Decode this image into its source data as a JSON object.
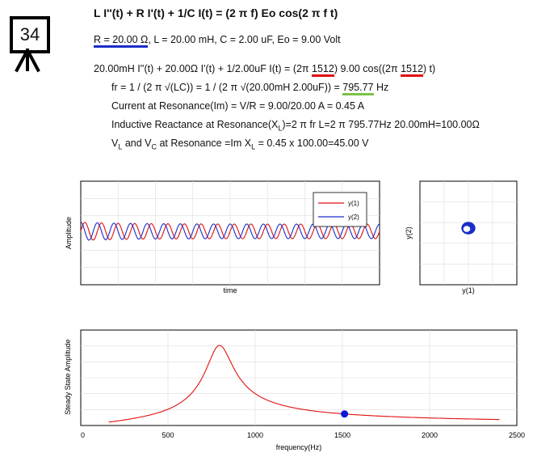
{
  "problem_number": "34",
  "title": "L I''(t) + R I'(t) + 1/C I(t) = (2 π f) Eo cos(2 π f t)",
  "params": {
    "r_part": "R = 20.00 Ω",
    "rest": ", L = 20.00 mH, C = 2.00 uF, Eo = 9.00 Volt"
  },
  "ode": {
    "part1": "20.00mH I''(t) + 20.00Ω I'(t) + 1/2.00uF I(t) = (2π ",
    "freq1": "1512",
    "part2": ") 9.00 cos((2π ",
    "freq2": "1512",
    "part3": ") t)"
  },
  "resonance": {
    "fr_prefix": "fr = 1 / (2 π √(LC)) = 1 / (2 π √(20.00mH 2.00uF)) = ",
    "fr_value": "795.77",
    "fr_unit": " Hz",
    "current_line": "Current at Resonance(Im) = V/R = 9.00/20.00 A = 0.45 A",
    "reactance_a": "Inductive Reactance at Resonance(X",
    "reactance_sub": "L",
    "reactance_b": ")=2 π fr L=2 π 795.77Hz 20.00mH=100.00Ω",
    "v_a": "V",
    "v_sub1": "L",
    "v_b": " and V",
    "v_sub2": "C",
    "v_c": " at Resonance =Im X",
    "v_sub3": "L",
    "v_d": " = 0.45 x 100.00=45.00 V"
  },
  "colors": {
    "series1": "#e01010",
    "series2": "#1a2ec9",
    "marker": "#0a1ad8",
    "frequency_curve": "#e01010"
  },
  "chart_data": [
    {
      "type": "line",
      "xlabel": "time",
      "ylabel": "Amplitude",
      "legend_position": "top-right",
      "series": [
        {
          "name": "y(1)",
          "color": "#e01010",
          "amplitude": 1.0,
          "cycles": 18,
          "phase_deg": 0
        },
        {
          "name": "y(2)",
          "color": "#1a2ec9",
          "amplitude": 1.0,
          "cycles": 18,
          "phase_deg": 90
        }
      ],
      "grid": true
    },
    {
      "type": "line",
      "xlabel": "y(1)",
      "ylabel": "y(2)",
      "description": "phase portrait, small closed loop near center",
      "grid": true
    },
    {
      "type": "line",
      "xlabel": "frequency(Hz)",
      "ylabel": "Steady State Amplitude",
      "xlim": [
        0,
        2500
      ],
      "xticks": [
        0,
        500,
        1000,
        1500,
        2000,
        2500
      ],
      "resonance_hz": 795.77,
      "peak_amplitude": 0.45,
      "curve": {
        "x": [
          160,
          300,
          450,
          600,
          700,
          750,
          780,
          795.77,
          810,
          850,
          900,
          1000,
          1100,
          1200,
          1300,
          1400,
          1512,
          1700,
          1900,
          2100,
          2400
        ],
        "y": [
          0.017,
          0.034,
          0.058,
          0.11,
          0.21,
          0.32,
          0.41,
          0.45,
          0.43,
          0.33,
          0.24,
          0.145,
          0.102,
          0.079,
          0.065,
          0.055,
          0.048,
          0.04,
          0.034,
          0.03,
          0.025
        ]
      },
      "marker": {
        "x": 1512,
        "y": 0.048
      },
      "grid": true
    }
  ]
}
